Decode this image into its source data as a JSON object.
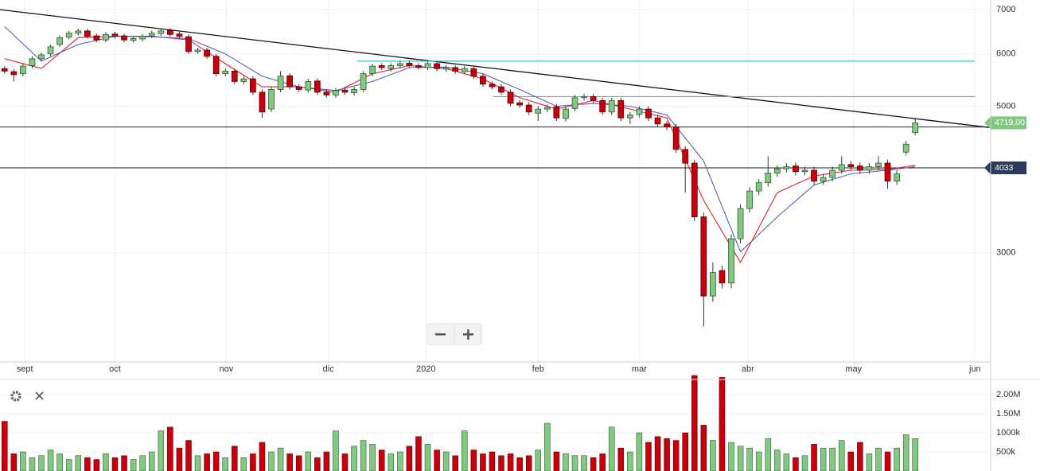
{
  "chart_data": {
    "type": "candlestick",
    "xlim": [
      -0.5,
      107.2
    ],
    "xticks": [
      {
        "value": 2.2,
        "label": "sept"
      },
      {
        "value": 12.0,
        "label": "oct"
      },
      {
        "value": 24.1,
        "label": "nov"
      },
      {
        "value": 35.2,
        "label": "dic"
      },
      {
        "value": 45.8,
        "label": "2020"
      },
      {
        "value": 58.0,
        "label": "feb"
      },
      {
        "value": 69.0,
        "label": "mar"
      },
      {
        "value": 80.8,
        "label": "abr"
      },
      {
        "value": 92.3,
        "label": "may"
      },
      {
        "value": 105.5,
        "label": "jun"
      }
    ],
    "ylim": [
      2050,
      7240
    ],
    "log_scale": true,
    "yticks": [
      3000,
      5000,
      6000,
      7000
    ],
    "grid": true,
    "up_color": "#82c882",
    "down_color": "#c8000c",
    "open": [
      5700,
      5640,
      5600,
      5760,
      5900,
      6000,
      6200,
      6360,
      6450,
      6500,
      6390,
      6300,
      6430,
      6390,
      6290,
      6320,
      6390,
      6440,
      6510,
      6430,
      6370,
      6050,
      6080,
      5950,
      5600,
      5650,
      5450,
      5500,
      5250,
      4950,
      5300,
      5560,
      5350,
      5290,
      5460,
      5250,
      5200,
      5290,
      5240,
      5300,
      5600,
      5760,
      5700,
      5760,
      5810,
      5760,
      5720,
      5800,
      5690,
      5720,
      5640,
      5700,
      5550,
      5400,
      5350,
      5250,
      5060,
      5020,
      4880,
      4950,
      4990,
      4790,
      4960,
      5150,
      5170,
      5100,
      4900,
      5100,
      4800,
      4860,
      4950,
      4800,
      4700,
      4650,
      4300,
      4100,
      3400,
      2580,
      2820,
      2700,
      3150,
      3500,
      3720,
      3830,
      3960,
      4020,
      4060,
      3980,
      4000,
      3850,
      3900,
      4000,
      4080,
      4060,
      4000,
      4050,
      4100,
      3850,
      4260,
      4560
    ],
    "high": [
      5750,
      5690,
      5800,
      5950,
      6030,
      6200,
      6400,
      6500,
      6550,
      6550,
      6440,
      6470,
      6480,
      6440,
      6380,
      6430,
      6500,
      6550,
      6560,
      6480,
      6420,
      6130,
      6130,
      6000,
      5700,
      5700,
      5550,
      5550,
      5300,
      5350,
      5650,
      5610,
      5400,
      5500,
      5510,
      5300,
      5330,
      5340,
      5350,
      5650,
      5800,
      5810,
      5810,
      5850,
      5860,
      5810,
      5850,
      5850,
      5770,
      5770,
      5750,
      5750,
      5600,
      5450,
      5400,
      5300,
      5110,
      5070,
      5000,
      5030,
      5040,
      5000,
      5200,
      5220,
      5220,
      5150,
      5150,
      5150,
      4900,
      5000,
      5000,
      4850,
      4750,
      4700,
      4350,
      4150,
      3450,
      2900,
      2870,
      3200,
      3550,
      3770,
      3880,
      4200,
      4070,
      4100,
      4110,
      4050,
      4050,
      3950,
      4050,
      4200,
      4130,
      4110,
      4100,
      4200,
      4150,
      4000,
      4430,
      4780
    ],
    "low": [
      5600,
      5450,
      5550,
      5710,
      5850,
      5950,
      6150,
      6310,
      6400,
      6330,
      6250,
      6250,
      6330,
      6250,
      6240,
      6270,
      6340,
      6390,
      6370,
      6330,
      6000,
      6000,
      5900,
      5550,
      5550,
      5400,
      5400,
      5200,
      4800,
      4900,
      5250,
      5300,
      5250,
      5240,
      5200,
      5150,
      5150,
      5200,
      5190,
      5250,
      5550,
      5670,
      5650,
      5710,
      5710,
      5680,
      5670,
      5650,
      5640,
      5600,
      5590,
      5500,
      5350,
      5300,
      5200,
      5000,
      4970,
      4850,
      4750,
      4900,
      4750,
      4740,
      4910,
      5100,
      5050,
      4850,
      4850,
      4750,
      4700,
      4810,
      4750,
      4650,
      4600,
      4250,
      3700,
      3350,
      2320,
      2530,
      2650,
      2650,
      3100,
      3450,
      3670,
      3780,
      3910,
      3970,
      3930,
      3930,
      3800,
      3800,
      3850,
      3950,
      4000,
      3950,
      3950,
      4000,
      3750,
      3800,
      4210,
      4520
    ],
    "close": [
      5650,
      5580,
      5750,
      5900,
      5980,
      6150,
      6350,
      6450,
      6500,
      6380,
      6300,
      6420,
      6380,
      6300,
      6330,
      6380,
      6450,
      6500,
      6420,
      6380,
      6050,
      6080,
      5950,
      5600,
      5650,
      5450,
      5500,
      5250,
      4900,
      5300,
      5550,
      5350,
      5300,
      5450,
      5250,
      5200,
      5280,
      5250,
      5300,
      5600,
      5750,
      5720,
      5760,
      5800,
      5760,
      5730,
      5800,
      5700,
      5720,
      5650,
      5700,
      5550,
      5400,
      5350,
      5250,
      5050,
      5020,
      4900,
      4950,
      4980,
      4800,
      4950,
      5150,
      5170,
      5100,
      4900,
      5100,
      4800,
      4850,
      4950,
      4800,
      4700,
      4650,
      4300,
      4100,
      3400,
      2580,
      2800,
      2700,
      3150,
      3500,
      3720,
      3830,
      3960,
      4020,
      4050,
      3980,
      4000,
      3850,
      3900,
      4000,
      4080,
      4050,
      4000,
      4050,
      4100,
      3850,
      3950,
      4380,
      4719
    ],
    "moving_averages": [
      {
        "color": "#e0202a",
        "x": [
          0,
          4,
          8,
          12,
          16,
          20,
          24,
          28,
          32,
          36,
          40,
          44,
          48,
          52,
          56,
          60,
          64,
          68,
          72,
          76,
          80,
          84,
          88,
          92,
          96,
          99
        ],
        "values": [
          5900,
          5700,
          6350,
          6380,
          6380,
          6300,
          5800,
          5350,
          5350,
          5250,
          5600,
          5760,
          5700,
          5500,
          5150,
          4950,
          5100,
          4950,
          4800,
          3600,
          2900,
          3700,
          3920,
          4000,
          4010,
          4070
        ]
      },
      {
        "color": "#5a5fb0",
        "x": [
          0,
          4,
          8,
          12,
          16,
          20,
          24,
          28,
          32,
          36,
          40,
          44,
          48,
          52,
          56,
          60,
          64,
          68,
          72,
          76,
          80,
          84,
          88,
          92,
          96,
          99
        ],
        "values": [
          6600,
          5850,
          6200,
          6380,
          6370,
          6330,
          6000,
          5550,
          5350,
          5280,
          5450,
          5720,
          5730,
          5600,
          5300,
          5000,
          5050,
          5000,
          4850,
          4130,
          3010,
          3400,
          3800,
          3950,
          4000,
          4050
        ]
      }
    ],
    "trendline": {
      "color": "#111111",
      "x": [
        -0.5,
        107.2
      ],
      "values": [
        7000,
        4640
      ]
    },
    "hlines": [
      4650,
      4033
    ],
    "resistance_lines": [
      {
        "value": 5850,
        "from": 38.3,
        "to": 105.5,
        "color": "#3bbfb6"
      },
      {
        "value": 5170,
        "from": 53.1,
        "to": 105.5,
        "color": "#3bbfb6"
      }
    ],
    "annotations": [
      {
        "value": 4719,
        "label": "4719,00",
        "color": "#7ec97e"
      },
      {
        "value": 4033,
        "color": "#2b3b5c"
      }
    ],
    "volume": {
      "ylim": [
        0,
        2500000
      ],
      "yticks": [
        {
          "value": 500000,
          "label": "500k"
        },
        {
          "value": 1000000,
          "label": "1000k"
        },
        {
          "value": 1500000,
          "label": "1.50M"
        },
        {
          "value": 2000000,
          "label": "2.00M"
        }
      ],
      "values": [
        1300000,
        450000,
        500000,
        350000,
        400000,
        550000,
        450000,
        300000,
        400000,
        350000,
        300000,
        450000,
        350000,
        400000,
        300000,
        400000,
        500000,
        1050000,
        1150000,
        600000,
        800000,
        400000,
        450000,
        500000,
        350000,
        650000,
        350000,
        450000,
        750000,
        500000,
        600000,
        450000,
        400000,
        500000,
        350000,
        500000,
        1050000,
        450000,
        650000,
        800000,
        700000,
        550000,
        450000,
        500000,
        650000,
        900000,
        700000,
        550000,
        500000,
        400000,
        1050000,
        550000,
        450000,
        500000,
        400000,
        450000,
        350000,
        400000,
        550000,
        1250000,
        500000,
        450000,
        400000,
        400000,
        350000,
        450000,
        1150000,
        600000,
        500000,
        1000000,
        750000,
        900000,
        850000,
        800000,
        1000000,
        2500000,
        1200000,
        800000,
        2450000,
        750000,
        650000,
        600000,
        500000,
        850000,
        550000,
        450000,
        350000,
        400000,
        700000,
        600000,
        600000,
        800000,
        500000,
        750000,
        450000,
        600000,
        500000,
        600000,
        950000,
        850000
      ]
    }
  }
}
